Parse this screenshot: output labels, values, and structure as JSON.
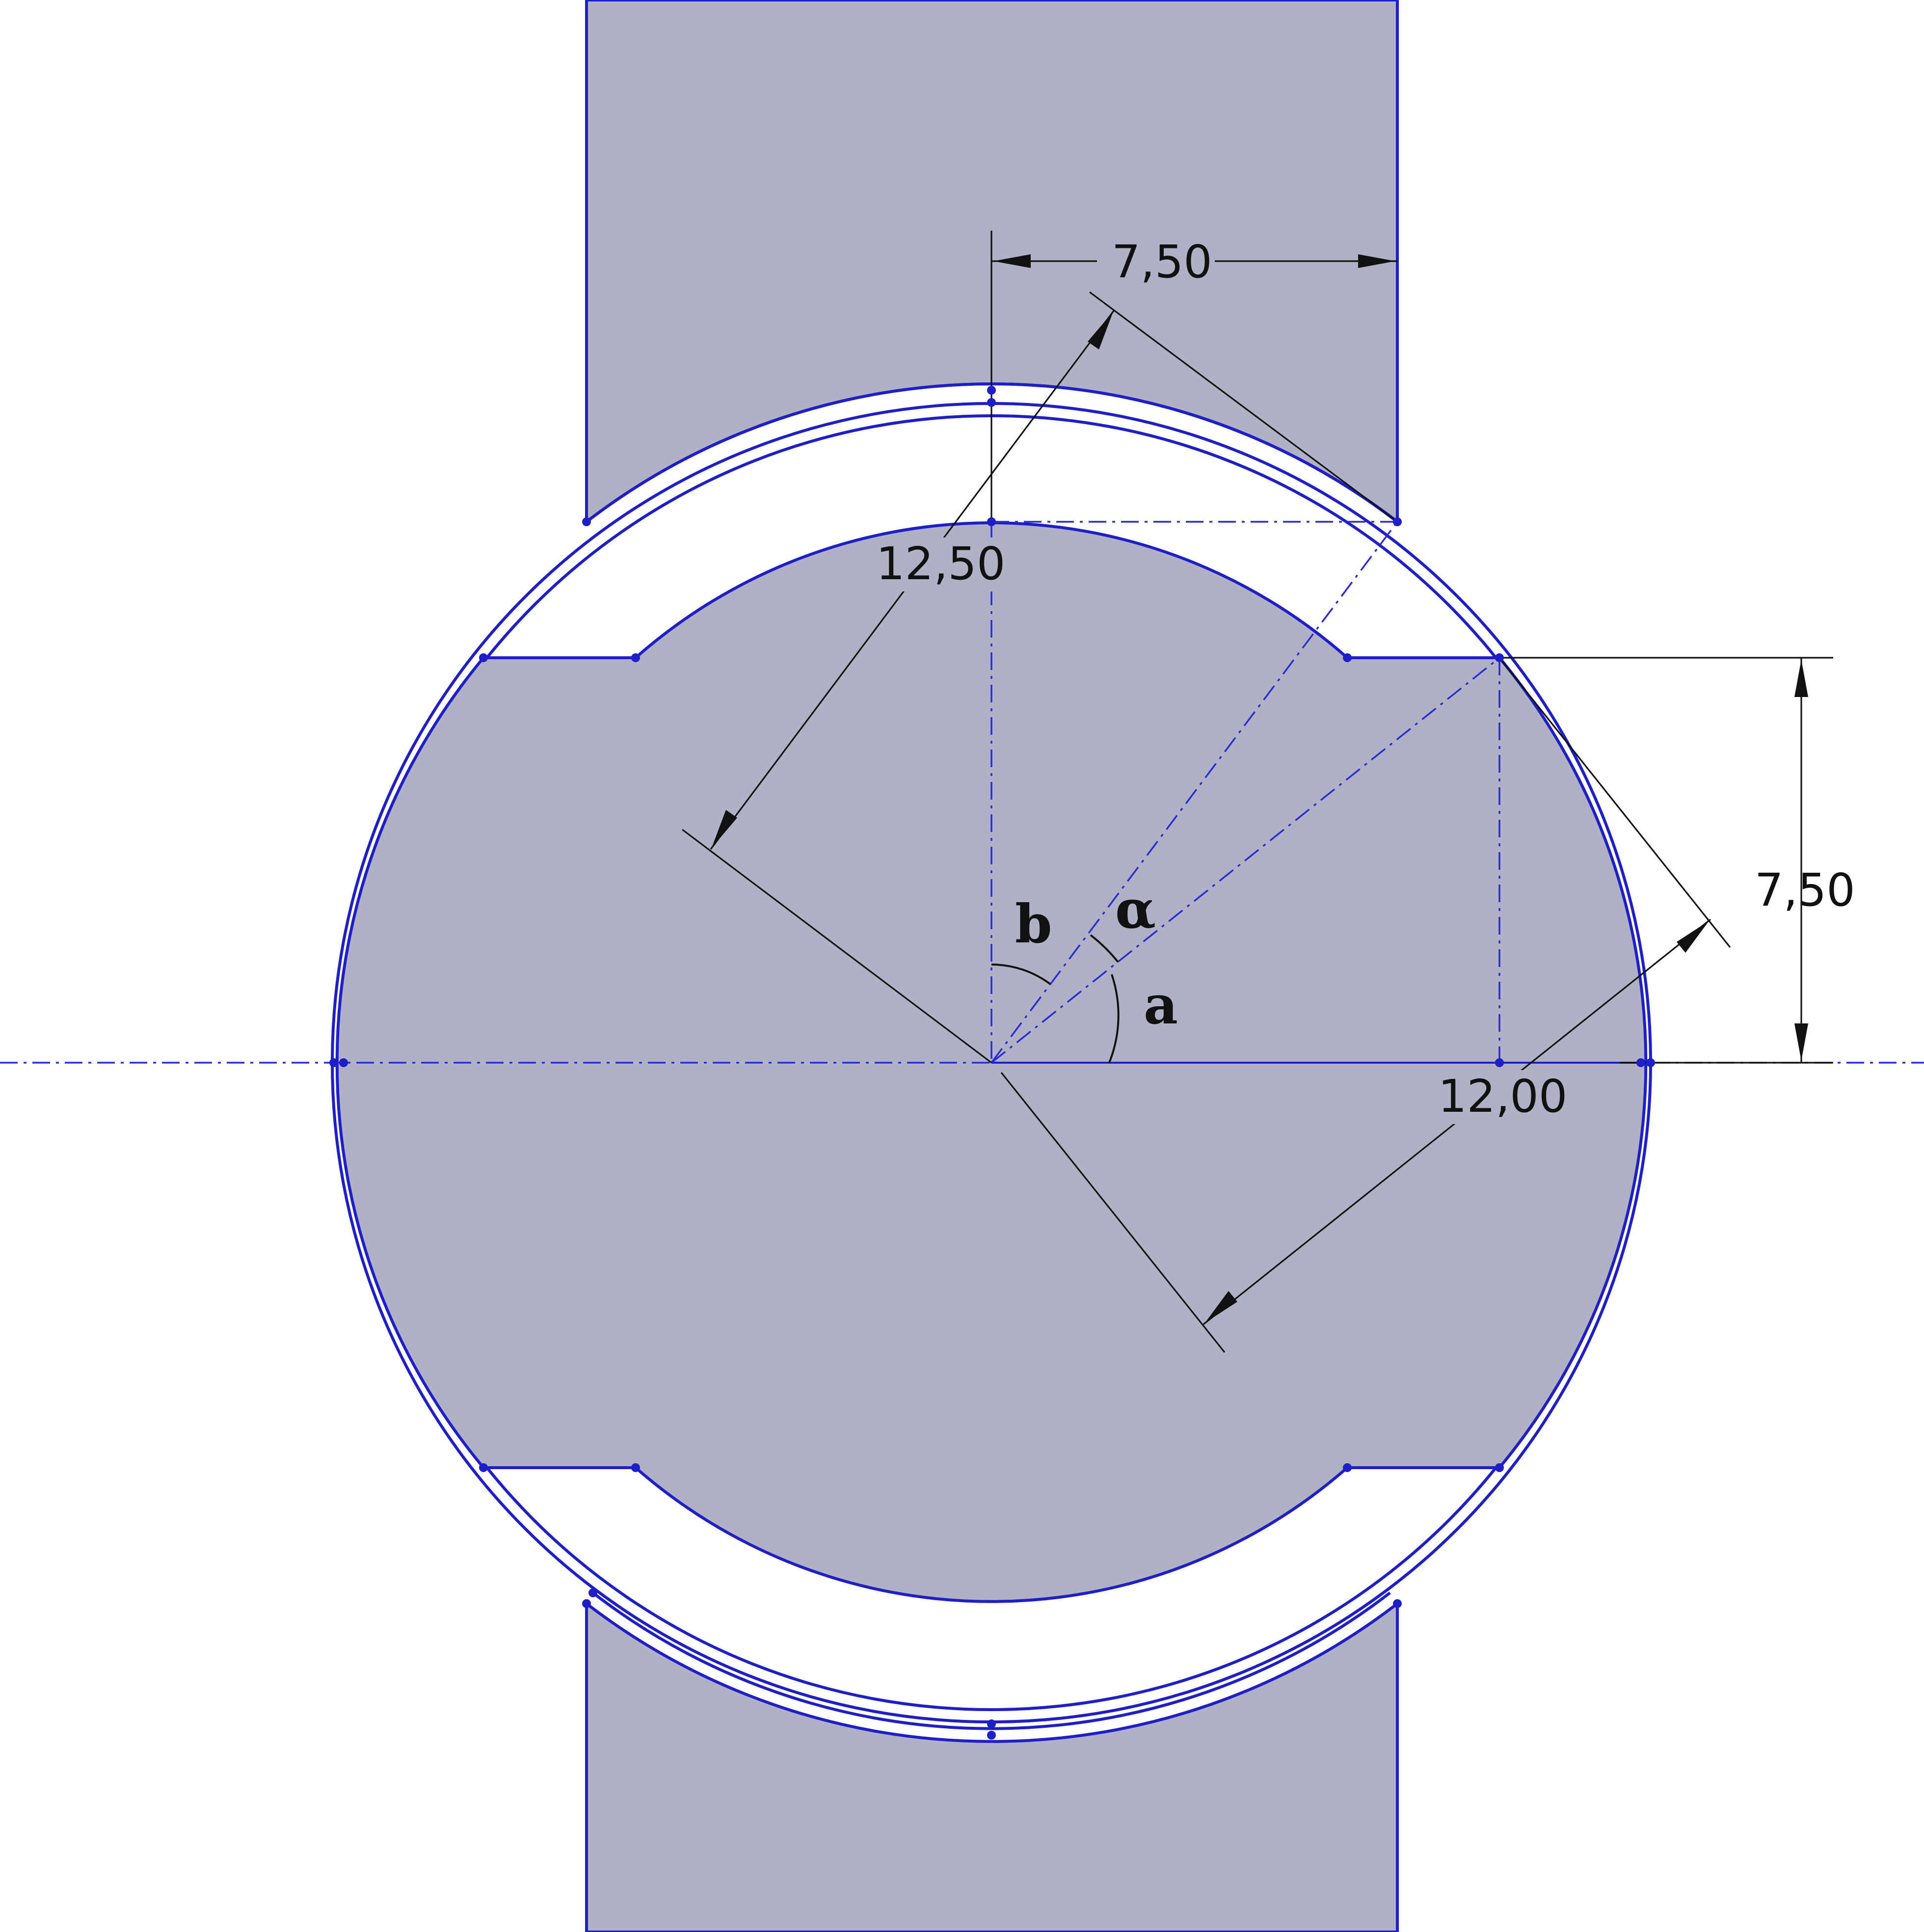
{
  "dimensions": {
    "top_width": "7,50",
    "right_height": "7,50",
    "outer_radius": "12,50",
    "inner_radius": "12,00"
  },
  "angles": {
    "b": "b",
    "alpha": "α",
    "a": "a"
  },
  "colors": {
    "part_fill": "#b1b1c6",
    "sketch_line": "#1f1fc8",
    "dimension_line": "#111111"
  }
}
